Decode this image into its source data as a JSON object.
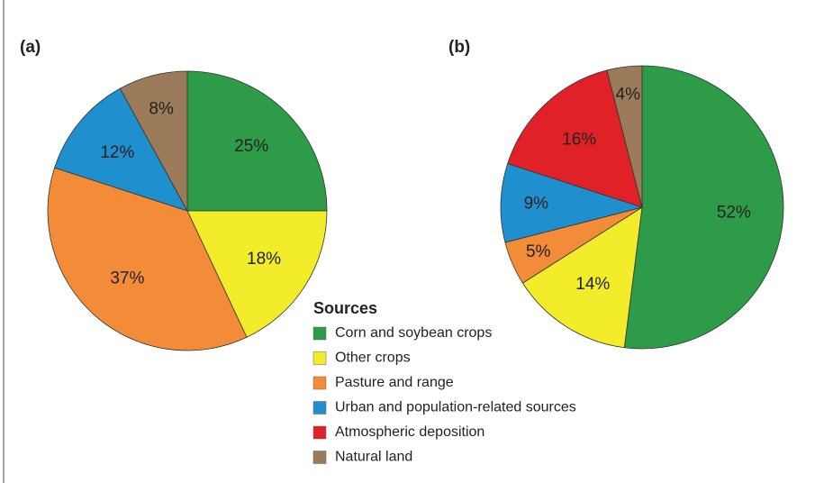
{
  "chart_data": [
    {
      "type": "pie",
      "title": "(a)",
      "categories": [
        "Corn and soybean crops",
        "Other crops",
        "Pasture and range",
        "Urban and population-related sources",
        "Natural land"
      ],
      "values": [
        25,
        18,
        37,
        12,
        8
      ],
      "value_labels": [
        "25%",
        "18%",
        "37%",
        "12%",
        "8%"
      ],
      "colors": [
        "#2e9b48",
        "#f2ec2a",
        "#f28c38",
        "#1f8fce",
        "#9b7b5a"
      ]
    },
    {
      "type": "pie",
      "title": "(b)",
      "categories": [
        "Corn and soybean crops",
        "Other crops",
        "Pasture and range",
        "Urban and population-related sources",
        "Atmospheric deposition",
        "Natural land"
      ],
      "values": [
        52,
        14,
        5,
        9,
        16,
        4
      ],
      "value_labels": [
        "52%",
        "14%",
        "5%",
        "9%",
        "16%",
        "4%"
      ],
      "colors": [
        "#2e9b48",
        "#f2ec2a",
        "#f28c38",
        "#1f8fce",
        "#e02228",
        "#9b7b5a"
      ]
    }
  ],
  "legend": {
    "title": "Sources",
    "entries": [
      {
        "name": "Corn and soybean crops",
        "color": "#2e9b48"
      },
      {
        "name": "Other crops",
        "color": "#f2ec2a"
      },
      {
        "name": "Pasture and range",
        "color": "#f28c38"
      },
      {
        "name": "Urban and population-related sources",
        "color": "#1f8fce"
      },
      {
        "name": "Atmospheric deposition",
        "color": "#e02228"
      },
      {
        "name": "Natural land",
        "color": "#9b7b5a"
      }
    ]
  }
}
